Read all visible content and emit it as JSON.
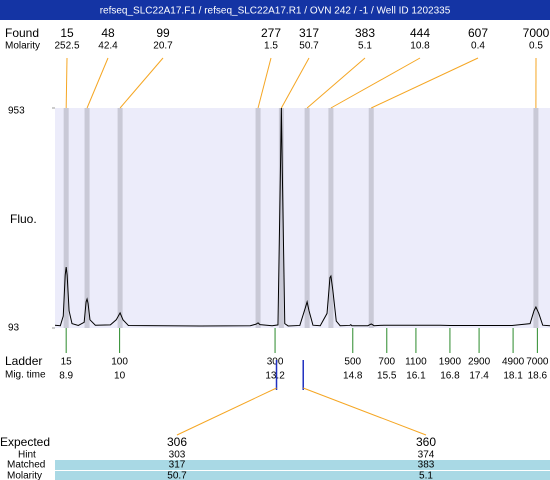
{
  "header": "refseq_SLC22A17.F1 / refseq_SLC22A17.R1 / OVN 242 / -1 / Well ID 1202335",
  "chart_data": {
    "type": "electropherogram",
    "labels": {
      "found": "Found",
      "molarity": "Molarity",
      "y_axis": "Fluo.",
      "ladder": "Ladder",
      "mig_time": "Mig. time"
    },
    "ylim": [
      93,
      953
    ],
    "yticks": [
      93,
      953
    ],
    "xlim": [
      8.67,
      18.86
    ],
    "peaks": {
      "found": [
        15,
        48,
        99,
        277,
        317,
        383,
        444,
        607,
        7000
      ],
      "molarity": [
        252.5,
        42.4,
        20.7,
        1.5,
        50.7,
        5.1,
        10.8,
        0.4,
        0.5
      ],
      "mig_time": [
        8.9,
        9.33,
        10.01,
        12.85,
        13.33,
        13.86,
        14.35,
        15.18,
        18.57
      ]
    },
    "trace": {
      "x": [
        8.67,
        8.78,
        8.84,
        8.88,
        8.9,
        8.92,
        8.96,
        9.02,
        9.15,
        9.27,
        9.31,
        9.33,
        9.35,
        9.39,
        9.5,
        9.81,
        9.93,
        10.01,
        10.07,
        10.18,
        11.66,
        12.69,
        12.81,
        12.85,
        12.89,
        13.14,
        13.26,
        13.31,
        13.33,
        13.35,
        13.4,
        13.47,
        13.71,
        13.82,
        13.86,
        13.9,
        13.98,
        14.13,
        14.27,
        14.33,
        14.35,
        14.39,
        14.46,
        14.54,
        14.74,
        14.76,
        14.78,
        15.11,
        15.18,
        15.24,
        15.44,
        16.14,
        16.6,
        16.8,
        17.38,
        18.08,
        18.45,
        18.53,
        18.57,
        18.63,
        18.71,
        18.86
      ],
      "values": [
        104,
        102,
        140,
        300,
        331,
        300,
        160,
        110,
        103,
        115,
        195,
        206,
        190,
        125,
        104,
        105,
        125,
        152,
        125,
        103,
        101,
        102,
        108,
        113,
        106,
        102,
        105,
        700,
        953,
        700,
        110,
        101,
        103,
        170,
        195,
        160,
        104,
        102,
        150,
        290,
        296,
        240,
        120,
        102,
        103,
        106,
        102,
        102,
        109,
        102,
        104,
        104,
        104,
        103,
        103,
        103,
        110,
        160,
        175,
        150,
        104,
        102
      ]
    },
    "ladder": {
      "sizes": [
        15,
        100,
        300,
        500,
        700,
        1100,
        1900,
        2900,
        4900,
        7000
      ],
      "mig_time": [
        8.9,
        10,
        13.2,
        14.8,
        15.5,
        16.1,
        16.8,
        17.4,
        18.1,
        18.6
      ]
    },
    "expected": {
      "label": "Expected",
      "hint_label": "Hint",
      "matched_label": "Matched",
      "molarity_label": "Molarity",
      "expected": [
        306,
        360
      ],
      "hint": [
        303,
        374
      ],
      "matched": [
        317,
        383
      ],
      "molarity": [
        50.7,
        5.1
      ],
      "mig_time": [
        13.23,
        13.78
      ]
    }
  }
}
